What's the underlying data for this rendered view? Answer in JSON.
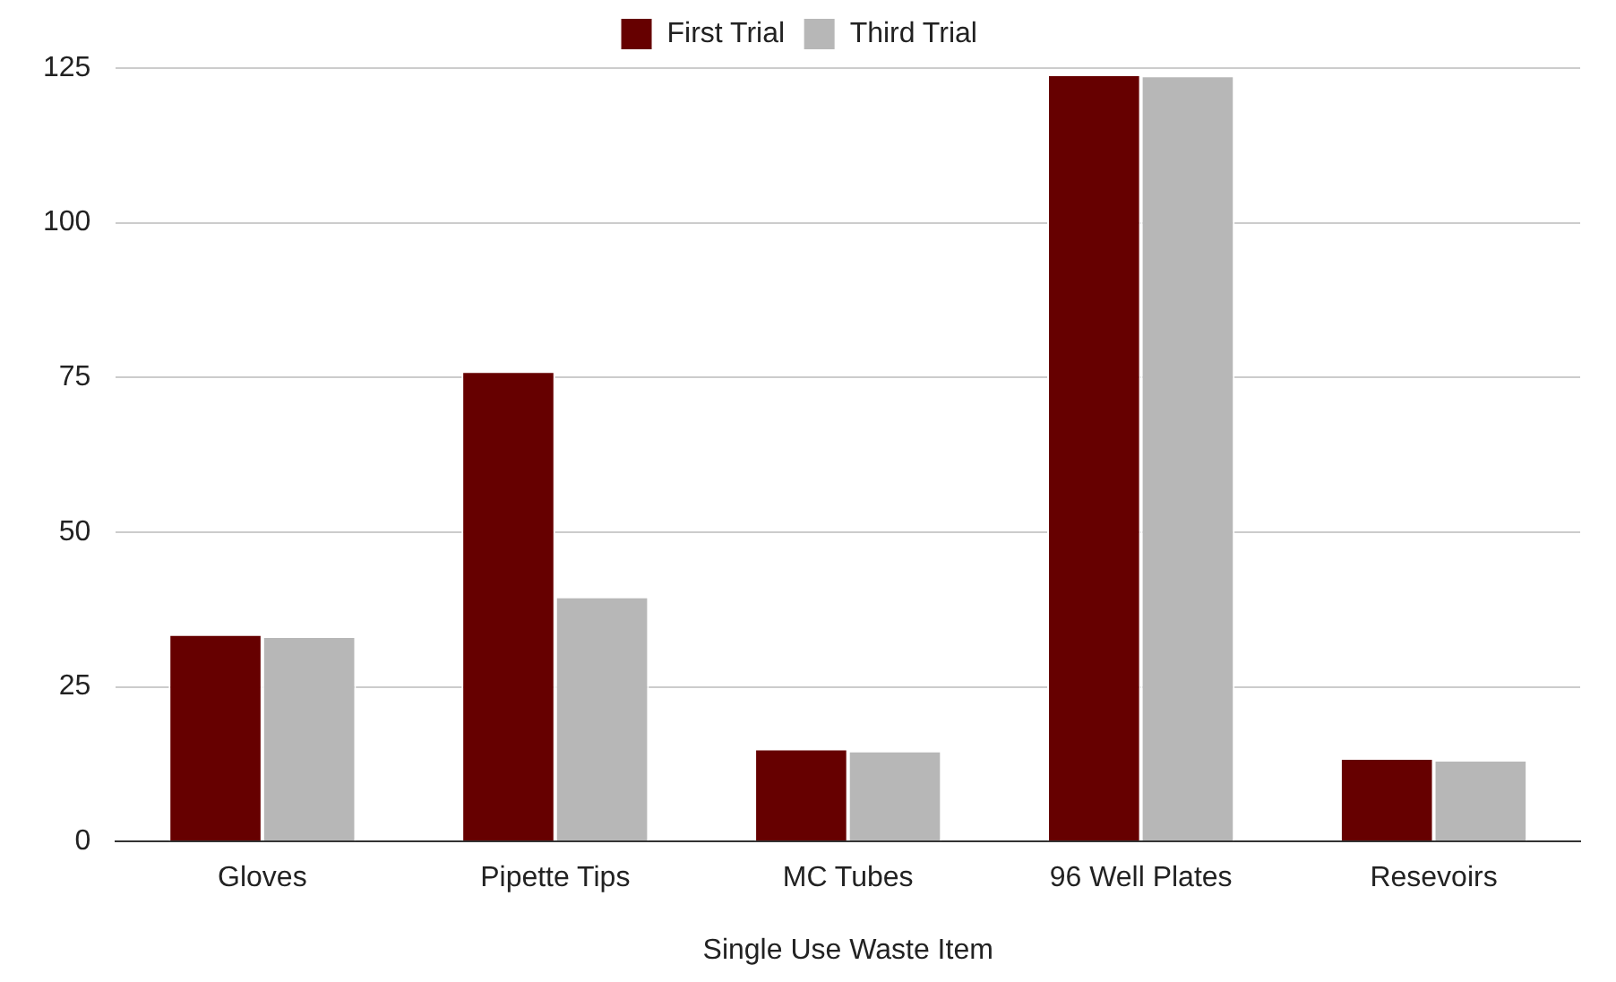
{
  "chart_data": {
    "type": "bar",
    "xlabel": "Single Use Waste Item",
    "categories": [
      "Gloves",
      "Pipette Tips",
      "MC Tubes",
      "96 Well Plates",
      "Resevoirs"
    ],
    "series": [
      {
        "name": "First Trial",
        "color": "#660000",
        "values": [
          33.5,
          76,
          15,
          124,
          13.5
        ]
      },
      {
        "name": "Third Trial",
        "color": "#b7b7b7",
        "values": [
          33.2,
          39.6,
          14.7,
          123.8,
          13.2
        ]
      }
    ],
    "ylim": [
      0,
      125
    ],
    "yticks": [
      0,
      25,
      50,
      75,
      100,
      125
    ],
    "grid": "y",
    "legend": "top"
  }
}
